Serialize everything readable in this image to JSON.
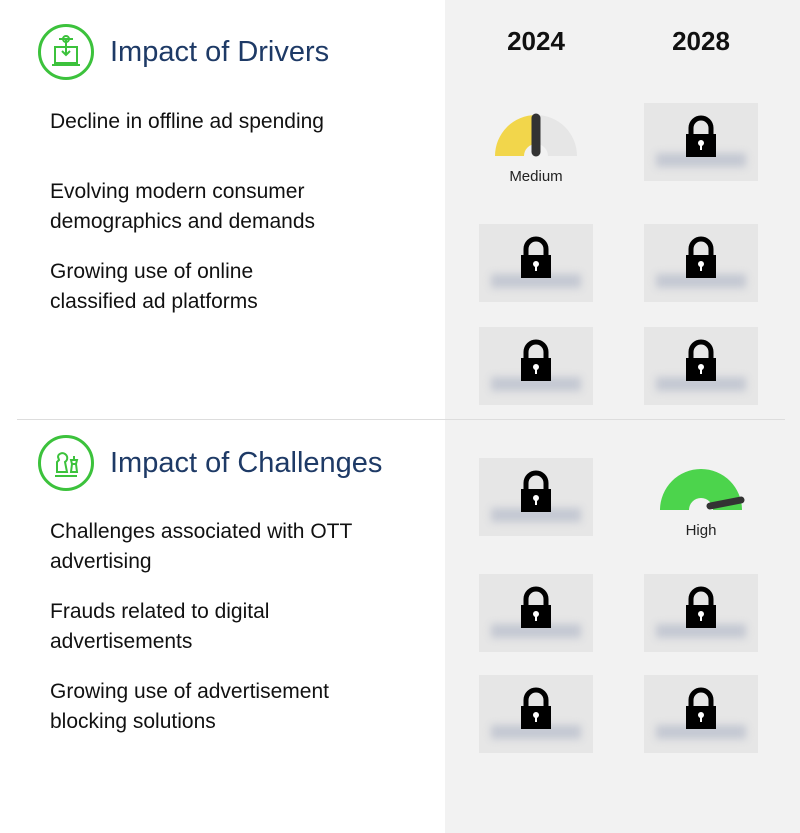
{
  "columns": [
    "2024",
    "2028"
  ],
  "drivers": {
    "title": "Impact of Drivers",
    "icon": "laptop-circuit-icon",
    "items": [
      "Decline in offline ad spending",
      "Evolving modern consumer demographics and demands",
      "Growing use of online classified ad platforms"
    ]
  },
  "challenges": {
    "title": "Impact of Challenges",
    "icon": "chess-icon",
    "items": [
      "Challenges associated with OTT advertising",
      "Frauds related to digital advertisements",
      "Growing use of advertisement blocking solutions"
    ]
  },
  "gauges": {
    "drivers_1_2024": {
      "label": "Medium",
      "level": 0.5,
      "color": "#f2d64b"
    },
    "challenges_1_2028": {
      "label": "High",
      "level": 0.95,
      "color": "#4cd44c"
    }
  },
  "colors": {
    "accent": "#3cc23c",
    "title": "#1e3a66",
    "panel": "#f2f2f2"
  }
}
